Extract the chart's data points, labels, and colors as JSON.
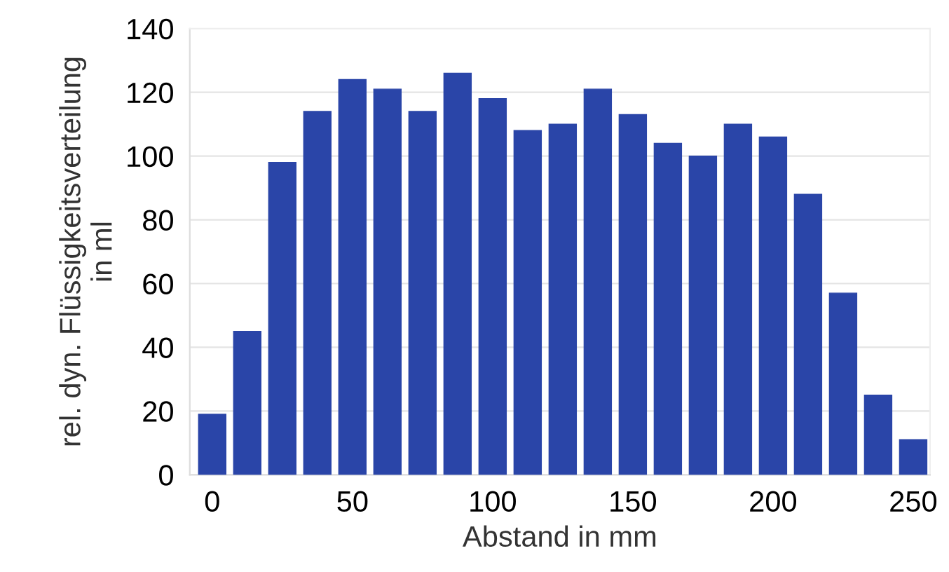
{
  "chart_data": {
    "type": "bar",
    "xlabel": "Abstand in mm",
    "ylabel": "rel. dyn. Flüssigkeitsverteilung\nin ml",
    "x": [
      0,
      12.5,
      25,
      37.5,
      50,
      62.5,
      75,
      87.5,
      100,
      112.5,
      125,
      137.5,
      150,
      162.5,
      175,
      187.5,
      200,
      212.5,
      225,
      237.5,
      250
    ],
    "values": [
      19,
      45,
      98,
      114,
      124,
      121,
      114,
      126,
      118,
      108,
      110,
      121,
      113,
      104,
      100,
      110,
      106,
      88,
      57,
      25,
      11
    ],
    "color": "#2a45a8",
    "xlim": [
      -8,
      256
    ],
    "ylim": [
      0,
      140
    ],
    "xticks": [
      0,
      50,
      100,
      150,
      200,
      250
    ],
    "yticks": [
      0,
      20,
      40,
      60,
      80,
      100,
      120,
      140
    ],
    "grid": "y"
  }
}
